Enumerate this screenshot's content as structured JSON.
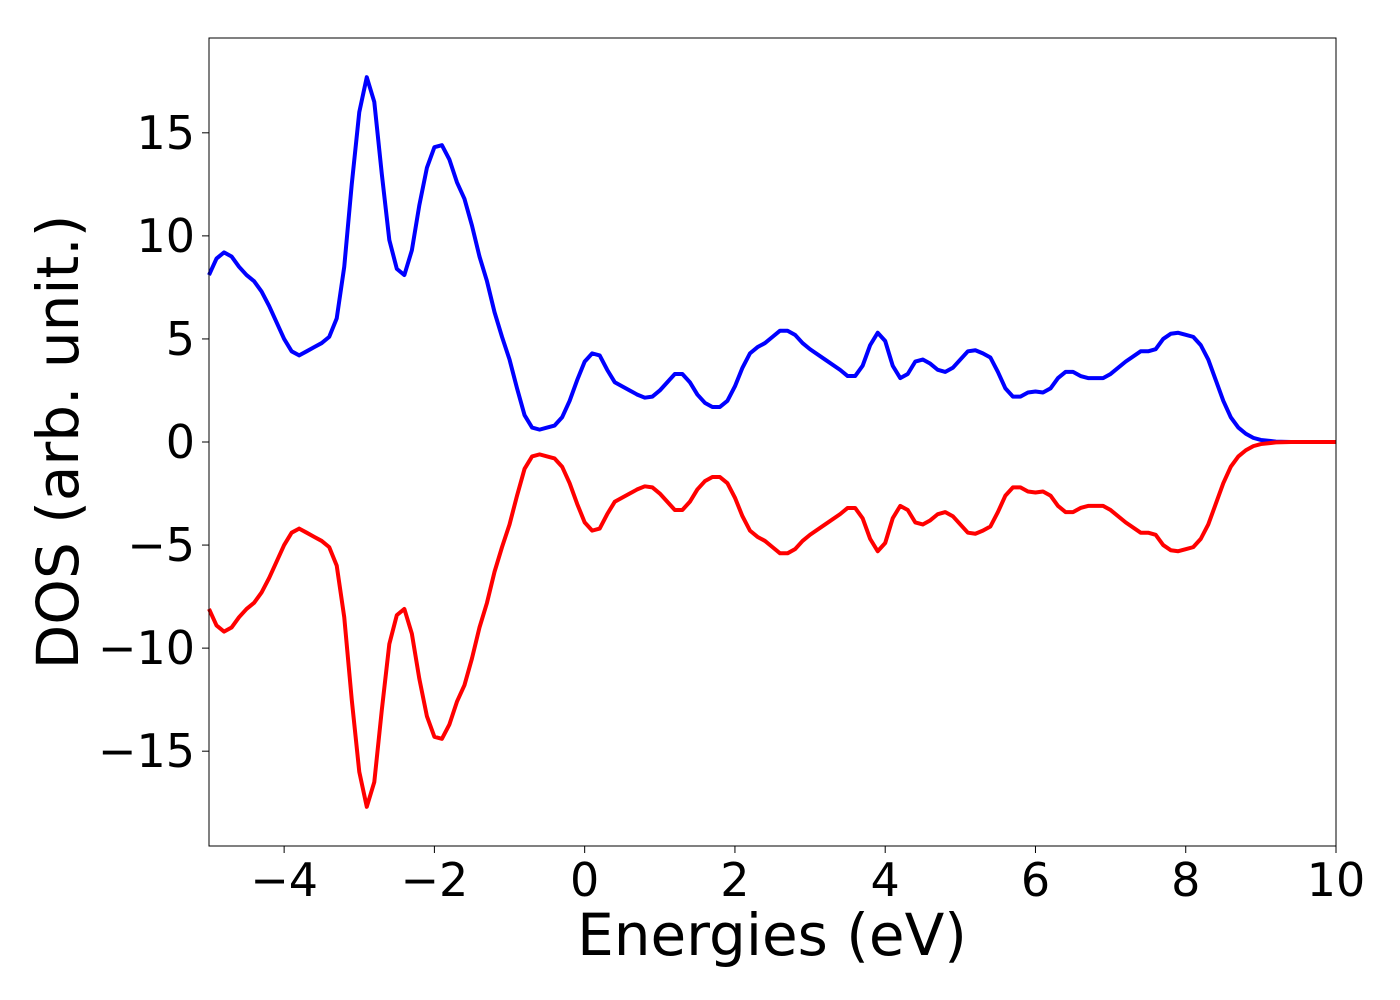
{
  "chart_data": {
    "type": "line",
    "x_label": "Energies (eV)",
    "y_label": "DOS (arb. unit.)",
    "xlim": [
      -5,
      10
    ],
    "ylim": [
      -19.6,
      19.6
    ],
    "xticks": [
      {
        "value": -4,
        "label": "−4"
      },
      {
        "value": -2,
        "label": "−2"
      },
      0,
      2,
      4,
      6,
      8,
      10
    ],
    "yticks": [
      {
        "value": -15,
        "label": "−15"
      },
      {
        "value": -10,
        "label": "−10"
      },
      {
        "value": -5,
        "label": "−5"
      },
      0,
      5,
      10,
      15
    ],
    "grid": false,
    "x": [
      -5.0,
      -4.9,
      -4.8,
      -4.7,
      -4.6,
      -4.5,
      -4.4,
      -4.3,
      -4.2,
      -4.1,
      -4.0,
      -3.9,
      -3.8,
      -3.7,
      -3.6,
      -3.5,
      -3.4,
      -3.3,
      -3.2,
      -3.1,
      -3.0,
      -2.9,
      -2.8,
      -2.7,
      -2.6,
      -2.5,
      -2.4,
      -2.3,
      -2.2,
      -2.1,
      -2.0,
      -1.9,
      -1.8,
      -1.7,
      -1.6,
      -1.5,
      -1.4,
      -1.3,
      -1.2,
      -1.1,
      -1.0,
      -0.9,
      -0.8,
      -0.7,
      -0.6,
      -0.5,
      -0.4,
      -0.3,
      -0.2,
      -0.1,
      0.0,
      0.1,
      0.2,
      0.3,
      0.4,
      0.5,
      0.6,
      0.7,
      0.8,
      0.9,
      1.0,
      1.1,
      1.2,
      1.3,
      1.4,
      1.5,
      1.6,
      1.7,
      1.8,
      1.9,
      2.0,
      2.1,
      2.2,
      2.3,
      2.4,
      2.5,
      2.6,
      2.7,
      2.8,
      2.9,
      3.0,
      3.2,
      3.4,
      3.5,
      3.6,
      3.7,
      3.8,
      3.9,
      4.0,
      4.1,
      4.2,
      4.3,
      4.4,
      4.5,
      4.6,
      4.7,
      4.8,
      4.9,
      5.0,
      5.1,
      5.2,
      5.3,
      5.4,
      5.5,
      5.6,
      5.7,
      5.8,
      5.9,
      6.0,
      6.1,
      6.2,
      6.3,
      6.4,
      6.5,
      6.6,
      6.7,
      6.8,
      6.9,
      7.0,
      7.2,
      7.4,
      7.5,
      7.6,
      7.7,
      7.8,
      7.9,
      8.0,
      8.1,
      8.2,
      8.3,
      8.4,
      8.5,
      8.6,
      8.7,
      8.8,
      8.9,
      9.0,
      9.2,
      9.4,
      10.0
    ],
    "series": [
      {
        "color": "#0000ff",
        "values": [
          8.1,
          8.9,
          9.2,
          9.0,
          8.5,
          8.1,
          7.8,
          7.3,
          6.6,
          5.8,
          5.0,
          4.4,
          4.2,
          4.4,
          4.6,
          4.8,
          5.1,
          6.0,
          8.5,
          12.5,
          16.0,
          17.7,
          16.5,
          13.0,
          9.8,
          8.4,
          8.1,
          9.3,
          11.5,
          13.3,
          14.3,
          14.4,
          13.7,
          12.6,
          11.8,
          10.5,
          9.0,
          7.8,
          6.3,
          5.1,
          4.0,
          2.6,
          1.3,
          0.7,
          0.6,
          0.7,
          0.8,
          1.2,
          2.0,
          3.0,
          3.9,
          4.3,
          4.2,
          3.5,
          2.9,
          2.7,
          2.5,
          2.3,
          2.15,
          2.2,
          2.5,
          2.9,
          3.3,
          3.3,
          2.9,
          2.3,
          1.9,
          1.7,
          1.7,
          2.0,
          2.7,
          3.6,
          4.3,
          4.6,
          4.8,
          5.1,
          5.4,
          5.4,
          5.2,
          4.8,
          4.5,
          4.0,
          3.5,
          3.2,
          3.2,
          3.7,
          4.7,
          5.3,
          4.9,
          3.7,
          3.1,
          3.3,
          3.9,
          4.0,
          3.8,
          3.5,
          3.4,
          3.6,
          4.0,
          4.4,
          4.45,
          4.3,
          4.1,
          3.4,
          2.6,
          2.2,
          2.2,
          2.4,
          2.45,
          2.4,
          2.6,
          3.1,
          3.4,
          3.4,
          3.2,
          3.1,
          3.1,
          3.1,
          3.3,
          3.9,
          4.4,
          4.4,
          4.5,
          5.0,
          5.25,
          5.3,
          5.2,
          5.1,
          4.7,
          4.0,
          3.0,
          2.0,
          1.2,
          0.7,
          0.4,
          0.2,
          0.1,
          0.02,
          0,
          0
        ]
      },
      {
        "color": "#ff0000",
        "values": [
          -8.1,
          -8.9,
          -9.2,
          -9.0,
          -8.5,
          -8.1,
          -7.8,
          -7.3,
          -6.6,
          -5.8,
          -5.0,
          -4.4,
          -4.2,
          -4.4,
          -4.6,
          -4.8,
          -5.1,
          -6.0,
          -8.5,
          -12.5,
          -16.0,
          -17.7,
          -16.5,
          -13.0,
          -9.8,
          -8.4,
          -8.1,
          -9.3,
          -11.5,
          -13.3,
          -14.3,
          -14.4,
          -13.7,
          -12.6,
          -11.8,
          -10.5,
          -9.0,
          -7.8,
          -6.3,
          -5.1,
          -4.0,
          -2.6,
          -1.3,
          -0.7,
          -0.6,
          -0.7,
          -0.8,
          -1.2,
          -2.0,
          -3.0,
          -3.9,
          -4.3,
          -4.2,
          -3.5,
          -2.9,
          -2.7,
          -2.5,
          -2.3,
          -2.15,
          -2.2,
          -2.5,
          -2.9,
          -3.3,
          -3.3,
          -2.9,
          -2.3,
          -1.9,
          -1.7,
          -1.7,
          -2.0,
          -2.7,
          -3.6,
          -4.3,
          -4.6,
          -4.8,
          -5.1,
          -5.4,
          -5.4,
          -5.2,
          -4.8,
          -4.5,
          -4.0,
          -3.5,
          -3.2,
          -3.2,
          -3.7,
          -4.7,
          -5.3,
          -4.9,
          -3.7,
          -3.1,
          -3.3,
          -3.9,
          -4.0,
          -3.8,
          -3.5,
          -3.4,
          -3.6,
          -4.0,
          -4.4,
          -4.45,
          -4.3,
          -4.1,
          -3.4,
          -2.6,
          -2.2,
          -2.2,
          -2.4,
          -2.45,
          -2.4,
          -2.6,
          -3.1,
          -3.4,
          -3.4,
          -3.2,
          -3.1,
          -3.1,
          -3.1,
          -3.3,
          -3.9,
          -4.4,
          -4.4,
          -4.5,
          -5.0,
          -5.25,
          -5.3,
          -5.2,
          -5.1,
          -4.7,
          -4.0,
          -3.0,
          -2.0,
          -1.2,
          -0.7,
          -0.4,
          -0.2,
          -0.1,
          -0.02,
          0,
          0
        ]
      }
    ]
  }
}
